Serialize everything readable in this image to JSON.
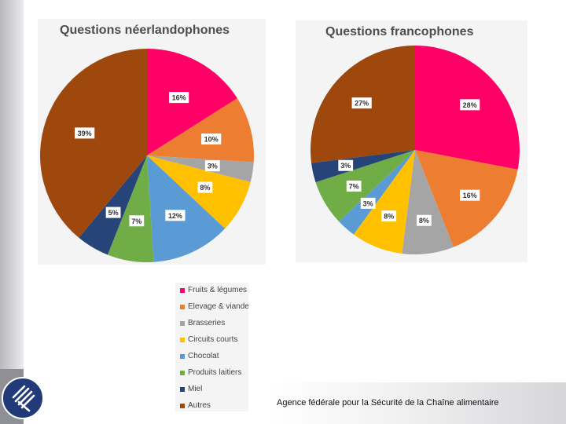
{
  "footer": {
    "agency": "Agence fédérale pour la Sécurité de la Chaîne alimentaire"
  },
  "chart_data": [
    {
      "type": "pie",
      "title": "Questions néerlandophones",
      "categories": [
        "Fruits & légumes",
        "Elevage & viande",
        "Brasseries",
        "Circuits courts",
        "Chocolat",
        "Produits laitiers",
        "Miel",
        "Autres"
      ],
      "values": [
        16,
        10,
        3,
        8,
        12,
        7,
        5,
        39
      ],
      "labels": [
        "16%",
        "10%",
        "3%",
        "8%",
        "12%",
        "7%",
        "5%",
        "39%"
      ]
    },
    {
      "type": "pie",
      "title": "Questions francophones",
      "categories": [
        "Fruits & légumes",
        "Elevage & viande",
        "Brasseries",
        "Circuits courts",
        "Chocolat",
        "Produits laitiers",
        "Miel",
        "Autres"
      ],
      "values": [
        28,
        16,
        8,
        8,
        3,
        7,
        3,
        27
      ],
      "labels": [
        "28%",
        "16%",
        "8%",
        "8%",
        "3%",
        "7%",
        "3%",
        "27%"
      ]
    }
  ],
  "legend": {
    "items": [
      {
        "label": "Fruits & légumes",
        "color": "#ff0066"
      },
      {
        "label": "Elevage & viande",
        "color": "#ed7d31"
      },
      {
        "label": "Brasseries",
        "color": "#a5a5a5"
      },
      {
        "label": "Circuits courts",
        "color": "#ffc000"
      },
      {
        "label": "Chocolat",
        "color": "#5b9bd5"
      },
      {
        "label": "Produits laitiers",
        "color": "#70ad47"
      },
      {
        "label": "Miel",
        "color": "#264478"
      },
      {
        "label": "Autres",
        "color": "#9e480e"
      }
    ]
  }
}
